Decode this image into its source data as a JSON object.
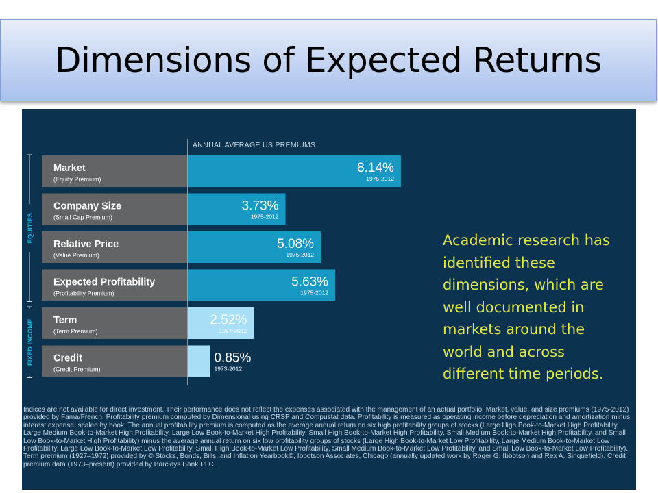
{
  "slide": {
    "title": "Dimensions of Expected Returns"
  },
  "panel_text": "Academic research has identified these dimensions, which are well documented in markets around the world and across different time periods.",
  "footnote": "Indices are not available for direct investment. Their performance does not reflect the expenses associated with the management of an actual portfolio. Market, value, and size premiums (1975-2012) provided by Fama/French. Profitability premium computed by Dimensional using CRSP and Compustat data. Profitability is measured as operating income before depreciation and amortization minus interest expense, scaled by book. The annual profitability premium is computed as the average annual return on six high profitability groups of stocks (Large High Book-to-Market High Profitability,  Large Medium Book-to-Market High Profitability, Large Low Book-to-Market High Profitability, Small High Book-to-Market High Profitability,  Small Medium Book-to-Market High Profitability, and Small Low Book-to-Market High Profitability) minus the average annual return on six low profitability groups of stocks (Large High Book-to-Market Low Profitability,  Large Medium Book-to-Market Low Profitability, Large Low Book-to-Market Low Profitability, Small High Book-to-Market Low Profitability,  Small Medium Book-to-Market Low Profitability, and Small Low Book-to-Market Low Profitability). Term premium (1927–1972) provided by © Stocks, Bonds, Bills, and Inflation Yearbook©, Ibbotson Associates, Chicago (annually updated work by Roger G. Ibbotson and Rex A. Sinquefield). Credit premium data (1973–present) provided by Barclays Bank PLC.",
  "colors": {
    "panel_bg": "#0b3350",
    "label_box": "#636466",
    "equity_bar": "#1899c4",
    "fixed_income_bar": "#a8dff7",
    "side_text": "#e1e64a",
    "group_label": "#1bb3dd"
  },
  "chart_data": {
    "type": "bar",
    "orientation": "horizontal",
    "axis_title": "ANNUAL AVERAGE US PREMIUMS",
    "xlim": [
      0,
      10
    ],
    "groups": [
      {
        "label": "EQUITIES",
        "categories": [
          0,
          1,
          2,
          3
        ]
      },
      {
        "label": "FIXED INCOME",
        "categories": [
          4,
          5
        ]
      }
    ],
    "categories": [
      {
        "name": "Market",
        "sub": "(Equity Premium)",
        "value": 8.14,
        "value_label": "8.14%",
        "period": "1975-2012",
        "group": "EQUITIES"
      },
      {
        "name": "Company Size",
        "sub": "(Small Cap Premium)",
        "value": 3.73,
        "value_label": "3.73%",
        "period": "1975-2012",
        "group": "EQUITIES"
      },
      {
        "name": "Relative Price",
        "sub": "(Value Premium)",
        "value": 5.08,
        "value_label": "5.08%",
        "period": "1975-2012",
        "group": "EQUITIES"
      },
      {
        "name": "Expected Profitability",
        "sub": "(Profitability Premium)",
        "value": 5.63,
        "value_label": "5.63%",
        "period": "1975-2012",
        "group": "EQUITIES"
      },
      {
        "name": "Term",
        "sub": "(Term Premium)",
        "value": 2.52,
        "value_label": "2.52%",
        "period": "1927-2012",
        "group": "FIXED INCOME"
      },
      {
        "name": "Credit",
        "sub": "(Credit Premium)",
        "value": 0.85,
        "value_label": "0.85%",
        "period": "1973-2012",
        "group": "FIXED INCOME"
      }
    ]
  }
}
